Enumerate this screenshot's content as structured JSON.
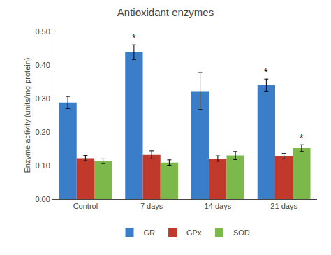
{
  "chart_data": {
    "type": "bar",
    "title": "Antioxidant enzymes",
    "ylabel": "Enzyme activity (units/mg protein)",
    "categories": [
      "Control",
      "7 days",
      "14 days",
      "21 days"
    ],
    "series": [
      {
        "name": "GR",
        "color": "#3A7DC9",
        "values": [
          0.288,
          0.438,
          0.322,
          0.34
        ],
        "errors": [
          0.018,
          0.022,
          0.055,
          0.018
        ],
        "annotations": [
          null,
          "*",
          null,
          "*"
        ]
      },
      {
        "name": "GPx",
        "color": "#C0392B",
        "values": [
          0.122,
          0.132,
          0.121,
          0.128
        ],
        "errors": [
          0.008,
          0.012,
          0.008,
          0.008
        ]
      },
      {
        "name": "SOD",
        "color": "#7DB84A",
        "values": [
          0.113,
          0.109,
          0.13,
          0.152
        ],
        "errors": [
          0.007,
          0.008,
          0.012,
          0.01
        ],
        "annotations": [
          null,
          null,
          null,
          "*"
        ]
      }
    ],
    "ylim": [
      0.0,
      0.5
    ],
    "yticks": [
      {
        "value": 0.0,
        "label": "0.00"
      },
      {
        "value": 0.1,
        "label": "0.10"
      },
      {
        "value": 0.2,
        "label": "0.20"
      },
      {
        "value": 0.3,
        "label": "0.30"
      },
      {
        "value": 0.4,
        "label": "0.40"
      },
      {
        "value": 0.5,
        "label": "0.50"
      }
    ],
    "grid": false,
    "legend": "bottom"
  }
}
